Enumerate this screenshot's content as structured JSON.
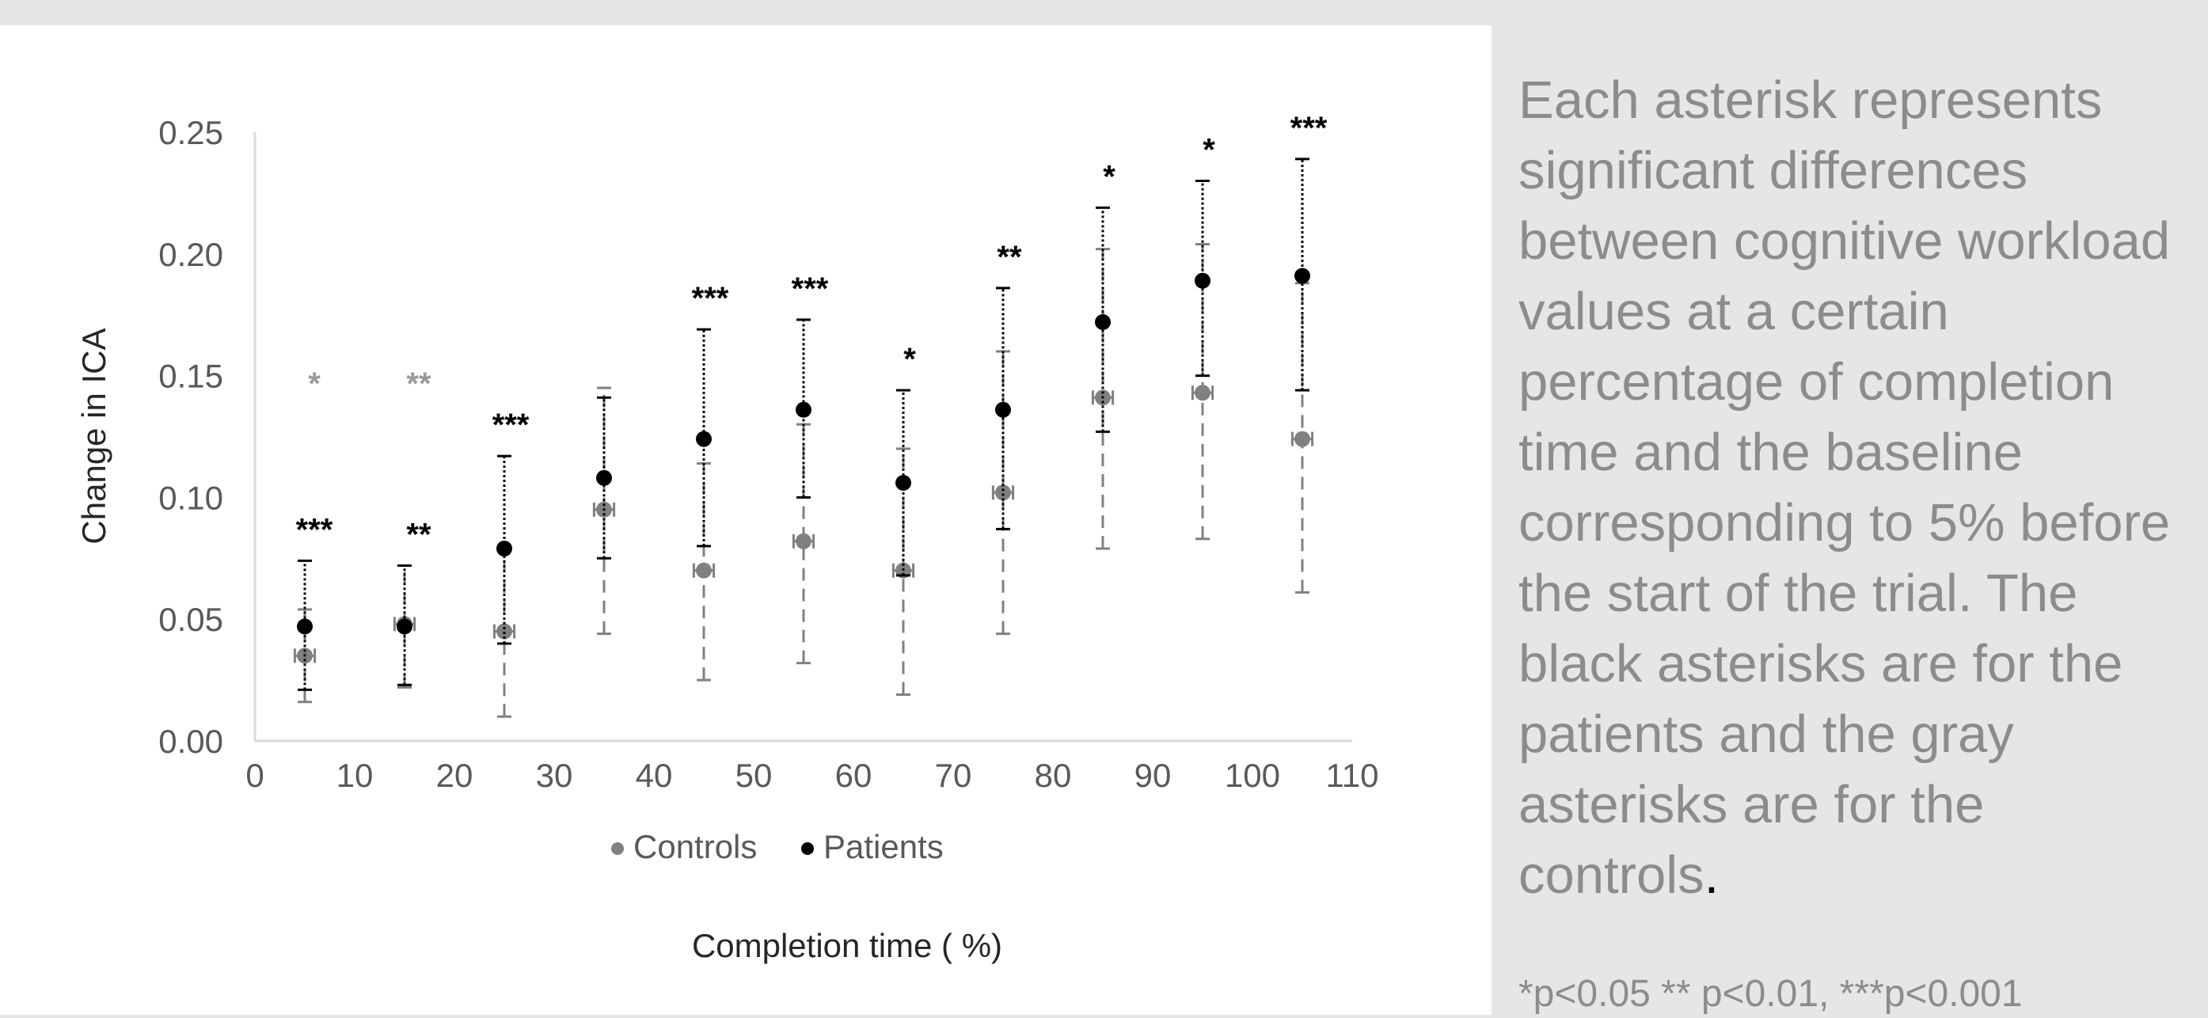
{
  "caption": {
    "text": "Each asterisk represents significant differences between cognitive workload values at a certain percentage of completion time and the baseline corresponding to 5% before the start of the trial. The black asterisks are for the patients and the gray asterisks are for the controls",
    "period": "."
  },
  "footnote": "*p<0.05 ** p<0.01, ***p<0.001",
  "colors": {
    "patients": "#000000",
    "controls": "#808080",
    "gray_asterisk": "#9a9a9a",
    "caption_text": "#8c8c8c",
    "page_background": "#e6e6e6",
    "chart_background": "#ffffff"
  },
  "chart_data": {
    "type": "scatter",
    "title": "",
    "xlabel": "Completion time ( %)",
    "ylabel": "Change in ICA",
    "xlim": [
      0,
      110
    ],
    "ylim": [
      0,
      0.25
    ],
    "x_ticks": [
      "0",
      "10",
      "20",
      "30",
      "40",
      "50",
      "60",
      "70",
      "80",
      "90",
      "100",
      "110"
    ],
    "y_ticks": [
      "0.00",
      "0.05",
      "0.10",
      "0.15",
      "0.20",
      "0.25"
    ],
    "grid": false,
    "legend_position": "bottom",
    "error_bars": true,
    "series": [
      {
        "name": "Controls",
        "x": [
          5,
          15,
          25,
          35,
          45,
          55,
          65,
          75,
          85,
          95,
          105
        ],
        "y": [
          0.035,
          0.048,
          0.045,
          0.095,
          0.07,
          0.082,
          0.07,
          0.102,
          0.141,
          0.143,
          0.124
        ],
        "y_lower": [
          0.016,
          0.022,
          0.01,
          0.044,
          0.025,
          0.032,
          0.019,
          0.044,
          0.079,
          0.083,
          0.061
        ],
        "y_upper": [
          0.054,
          0.072,
          0.08,
          0.145,
          0.114,
          0.13,
          0.12,
          0.16,
          0.202,
          0.204,
          0.188
        ],
        "x_error": 1,
        "significance": [
          "*",
          "**",
          "",
          "",
          "",
          "",
          "",
          "",
          "",
          "",
          ""
        ]
      },
      {
        "name": "Patients",
        "x": [
          5,
          15,
          25,
          35,
          45,
          55,
          65,
          75,
          85,
          95,
          105
        ],
        "y": [
          0.047,
          0.047,
          0.079,
          0.108,
          0.124,
          0.136,
          0.106,
          0.136,
          0.172,
          0.189,
          0.191
        ],
        "y_lower": [
          0.021,
          0.023,
          0.04,
          0.075,
          0.08,
          0.1,
          0.068,
          0.087,
          0.127,
          0.15,
          0.144
        ],
        "y_upper": [
          0.074,
          0.072,
          0.117,
          0.141,
          0.169,
          0.173,
          0.144,
          0.186,
          0.219,
          0.23,
          0.239
        ],
        "significance": [
          "***",
          "**",
          "***",
          "",
          "***",
          "***",
          "*",
          "**",
          "*",
          "*",
          "***"
        ]
      }
    ]
  }
}
